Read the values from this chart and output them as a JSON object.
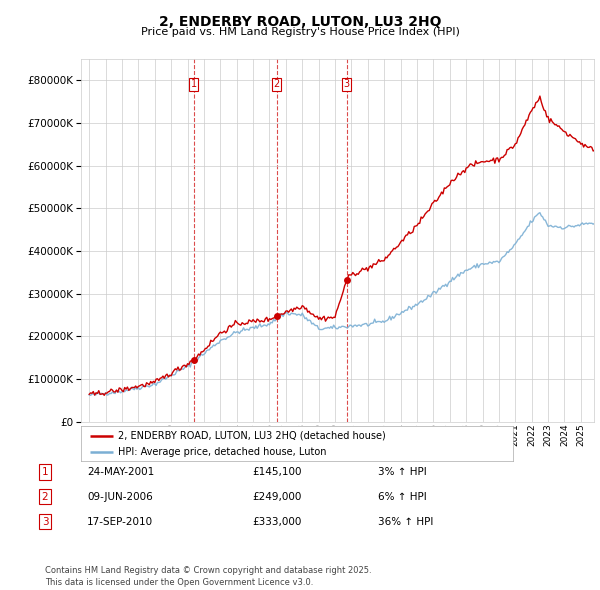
{
  "title": "2, ENDERBY ROAD, LUTON, LU3 2HQ",
  "subtitle": "Price paid vs. HM Land Registry's House Price Index (HPI)",
  "transactions": [
    {
      "num": 1,
      "date_str": "24-MAY-2001",
      "date_x": 2001.39,
      "price": 145100,
      "pct": "3%",
      "dir": "↑"
    },
    {
      "num": 2,
      "date_str": "09-JUN-2006",
      "date_x": 2006.44,
      "price": 249000,
      "pct": "6%",
      "dir": "↑"
    },
    {
      "num": 3,
      "date_str": "17-SEP-2010",
      "date_x": 2010.71,
      "price": 333000,
      "pct": "36%",
      "dir": "↑"
    }
  ],
  "legend_property": "2, ENDERBY ROAD, LUTON, LU3 2HQ (detached house)",
  "legend_hpi": "HPI: Average price, detached house, Luton",
  "footer": "Contains HM Land Registry data © Crown copyright and database right 2025.\nThis data is licensed under the Open Government Licence v3.0.",
  "property_color": "#cc0000",
  "hpi_color": "#7bafd4",
  "vline_color": "#cc0000",
  "background_color": "#ffffff",
  "ylim": [
    0,
    850000
  ],
  "yticks": [
    0,
    100000,
    200000,
    300000,
    400000,
    500000,
    600000,
    700000,
    800000
  ],
  "xmin": 1994.5,
  "xmax": 2025.8
}
